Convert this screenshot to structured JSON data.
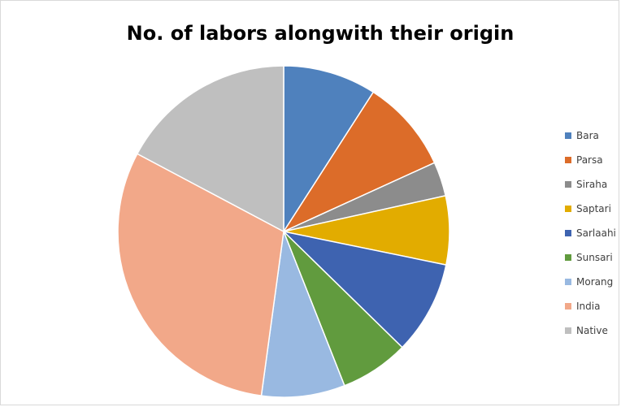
{
  "chart_data": {
    "type": "pie",
    "title": "No. of labors alongwith their origin",
    "legend_position": "right",
    "categories": [
      "Bara",
      "Parsa",
      "Siraha",
      "Saptari",
      "Sarlaahi",
      "Sunsari",
      "Morang",
      "India",
      "Native"
    ],
    "values": [
      9.5,
      9.5,
      3.5,
      7,
      9.5,
      7,
      8.5,
      32,
      18
    ],
    "colors": [
      "#4f81bd",
      "#dc6c29",
      "#8c8c8c",
      "#e2ac00",
      "#3e63b0",
      "#619b3e",
      "#99b9e1",
      "#f2a889",
      "#bfbfbf"
    ]
  }
}
